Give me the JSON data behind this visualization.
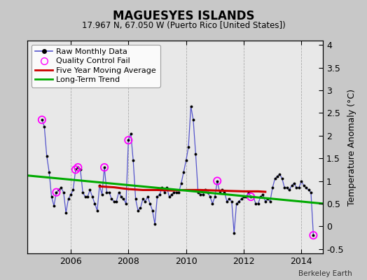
{
  "title": "MAGUESYES ISLANDS",
  "subtitle": "17.967 N, 67.050 W (Puerto Rico [United States])",
  "ylabel": "Temperature Anomaly (°C)",
  "credit": "Berkeley Earth",
  "ylim": [
    -0.6,
    4.1
  ],
  "yticks": [
    -0.5,
    0.0,
    0.5,
    1.0,
    1.5,
    2.0,
    2.5,
    3.0,
    3.5,
    4.0
  ],
  "xlim": [
    2004.5,
    2014.75
  ],
  "xticks": [
    2006,
    2008,
    2010,
    2012,
    2014
  ],
  "fig_bg_color": "#c8c8c8",
  "plot_bg_color": "#e8e8e8",
  "raw_color": "#5555cc",
  "raw_marker_color": "#000000",
  "ma_color": "#cc0000",
  "trend_color": "#00aa00",
  "qc_color": "#ff00ff",
  "raw_monthly": [
    [
      2005.0,
      2.35
    ],
    [
      2005.083,
      2.2
    ],
    [
      2005.167,
      1.55
    ],
    [
      2005.25,
      1.2
    ],
    [
      2005.333,
      0.65
    ],
    [
      2005.417,
      0.45
    ],
    [
      2005.5,
      0.75
    ],
    [
      2005.583,
      0.8
    ],
    [
      2005.667,
      0.85
    ],
    [
      2005.75,
      0.75
    ],
    [
      2005.833,
      0.3
    ],
    [
      2005.917,
      0.6
    ],
    [
      2006.0,
      0.7
    ],
    [
      2006.083,
      0.8
    ],
    [
      2006.167,
      1.25
    ],
    [
      2006.25,
      1.3
    ],
    [
      2006.333,
      1.25
    ],
    [
      2006.417,
      0.75
    ],
    [
      2006.5,
      0.65
    ],
    [
      2006.583,
      0.65
    ],
    [
      2006.667,
      0.8
    ],
    [
      2006.75,
      0.65
    ],
    [
      2006.833,
      0.5
    ],
    [
      2006.917,
      0.35
    ],
    [
      2007.0,
      0.9
    ],
    [
      2007.083,
      0.7
    ],
    [
      2007.167,
      1.3
    ],
    [
      2007.25,
      0.75
    ],
    [
      2007.333,
      0.75
    ],
    [
      2007.417,
      0.6
    ],
    [
      2007.5,
      0.55
    ],
    [
      2007.583,
      0.55
    ],
    [
      2007.667,
      0.75
    ],
    [
      2007.75,
      0.65
    ],
    [
      2007.833,
      0.6
    ],
    [
      2007.917,
      0.5
    ],
    [
      2008.0,
      1.9
    ],
    [
      2008.083,
      2.05
    ],
    [
      2008.167,
      1.45
    ],
    [
      2008.25,
      0.6
    ],
    [
      2008.333,
      0.35
    ],
    [
      2008.417,
      0.4
    ],
    [
      2008.5,
      0.6
    ],
    [
      2008.583,
      0.55
    ],
    [
      2008.667,
      0.65
    ],
    [
      2008.75,
      0.5
    ],
    [
      2008.833,
      0.35
    ],
    [
      2008.917,
      0.05
    ],
    [
      2009.0,
      0.65
    ],
    [
      2009.083,
      0.7
    ],
    [
      2009.167,
      0.85
    ],
    [
      2009.25,
      0.75
    ],
    [
      2009.333,
      0.85
    ],
    [
      2009.417,
      0.65
    ],
    [
      2009.5,
      0.7
    ],
    [
      2009.583,
      0.75
    ],
    [
      2009.667,
      0.75
    ],
    [
      2009.75,
      0.75
    ],
    [
      2009.833,
      0.95
    ],
    [
      2009.917,
      1.2
    ],
    [
      2010.0,
      1.45
    ],
    [
      2010.083,
      1.75
    ],
    [
      2010.167,
      2.65
    ],
    [
      2010.25,
      2.35
    ],
    [
      2010.333,
      1.6
    ],
    [
      2010.417,
      0.75
    ],
    [
      2010.5,
      0.7
    ],
    [
      2010.583,
      0.7
    ],
    [
      2010.667,
      0.8
    ],
    [
      2010.75,
      0.75
    ],
    [
      2010.833,
      0.65
    ],
    [
      2010.917,
      0.5
    ],
    [
      2011.0,
      0.65
    ],
    [
      2011.083,
      1.0
    ],
    [
      2011.167,
      0.75
    ],
    [
      2011.25,
      0.8
    ],
    [
      2011.333,
      0.75
    ],
    [
      2011.417,
      0.55
    ],
    [
      2011.5,
      0.6
    ],
    [
      2011.583,
      0.55
    ],
    [
      2011.667,
      -0.15
    ],
    [
      2011.75,
      0.5
    ],
    [
      2011.833,
      0.55
    ],
    [
      2011.917,
      0.6
    ],
    [
      2012.0,
      0.65
    ],
    [
      2012.083,
      0.65
    ],
    [
      2012.167,
      0.75
    ],
    [
      2012.25,
      0.65
    ],
    [
      2012.333,
      0.65
    ],
    [
      2012.417,
      0.5
    ],
    [
      2012.5,
      0.5
    ],
    [
      2012.583,
      0.65
    ],
    [
      2012.667,
      0.7
    ],
    [
      2012.75,
      0.55
    ],
    [
      2012.833,
      0.6
    ],
    [
      2012.917,
      0.55
    ],
    [
      2013.0,
      0.85
    ],
    [
      2013.083,
      1.05
    ],
    [
      2013.167,
      1.1
    ],
    [
      2013.25,
      1.15
    ],
    [
      2013.333,
      1.05
    ],
    [
      2013.417,
      0.85
    ],
    [
      2013.5,
      0.85
    ],
    [
      2013.583,
      0.8
    ],
    [
      2013.667,
      0.9
    ],
    [
      2013.75,
      0.95
    ],
    [
      2013.833,
      0.85
    ],
    [
      2013.917,
      0.85
    ],
    [
      2014.0,
      1.0
    ],
    [
      2014.083,
      0.9
    ],
    [
      2014.167,
      0.85
    ],
    [
      2014.25,
      0.8
    ],
    [
      2014.333,
      0.75
    ],
    [
      2014.417,
      -0.2
    ]
  ],
  "qc_fails": [
    [
      2005.0,
      2.35
    ],
    [
      2005.5,
      0.75
    ],
    [
      2006.167,
      1.25
    ],
    [
      2006.25,
      1.3
    ],
    [
      2007.167,
      1.3
    ],
    [
      2008.0,
      1.9
    ],
    [
      2011.083,
      1.0
    ],
    [
      2012.25,
      0.65
    ],
    [
      2014.417,
      -0.2
    ]
  ],
  "moving_avg_x": [
    2007.0,
    2007.5,
    2008.0,
    2008.5,
    2009.0,
    2009.5,
    2010.0,
    2010.5,
    2011.0,
    2011.5,
    2012.0,
    2012.5,
    2012.75
  ],
  "moving_avg_y": [
    0.88,
    0.86,
    0.82,
    0.8,
    0.8,
    0.79,
    0.8,
    0.8,
    0.79,
    0.78,
    0.77,
    0.77,
    0.76
  ],
  "trend_x": [
    2004.5,
    2014.75
  ],
  "trend_y": [
    1.12,
    0.5
  ]
}
